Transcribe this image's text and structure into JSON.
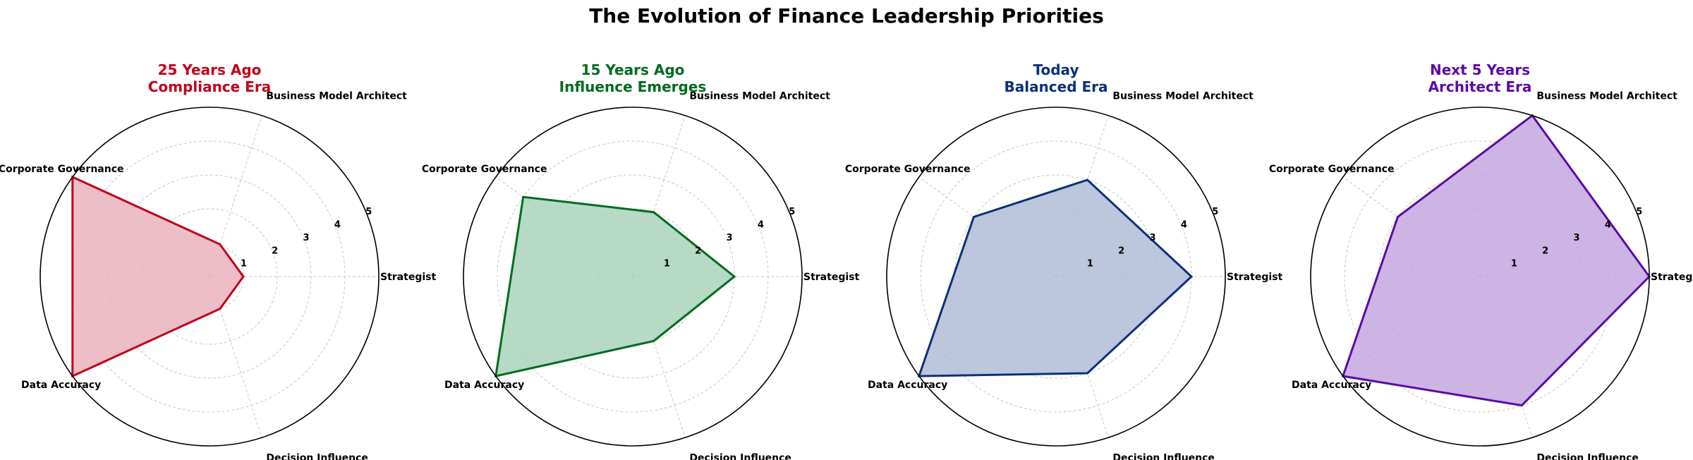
{
  "figure": {
    "title": "The Evolution of Finance Leadership Priorities"
  },
  "chart_data": [
    {
      "type": "radar",
      "title_line1": "25 Years Ago",
      "title_line2": "Compliance Era",
      "color": "#c0001a",
      "fill": "#eab3bd",
      "categories": [
        "Strategist",
        "Business Model Architect",
        "Corporate Governance",
        "Data Accuracy",
        "Decision Influence"
      ],
      "values": [
        1,
        1,
        5,
        5,
        1
      ],
      "rlim": [
        0,
        5
      ],
      "rticks": [
        1,
        2,
        3,
        4,
        5
      ],
      "grid": true
    },
    {
      "type": "radar",
      "title_line1": "15 Years Ago",
      "title_line2": "Influence Emerges",
      "color": "#006b1f",
      "fill": "#a9d4bb",
      "categories": [
        "Strategist",
        "Business Model Architect",
        "Corporate Governance",
        "Data Accuracy",
        "Decision Influence"
      ],
      "values": [
        3,
        2,
        4,
        5,
        2
      ],
      "rlim": [
        0,
        5
      ],
      "rticks": [
        1,
        2,
        3,
        4,
        5
      ],
      "grid": true
    },
    {
      "type": "radar",
      "title_line1": "Today",
      "title_line2": "Balanced Era",
      "color": "#0d2f7a",
      "fill": "#b0bcd6",
      "categories": [
        "Strategist",
        "Business Model Architect",
        "Corporate Governance",
        "Data Accuracy",
        "Decision Influence"
      ],
      "values": [
        4,
        3,
        3,
        5,
        3
      ],
      "rlim": [
        0,
        5
      ],
      "rticks": [
        1,
        2,
        3,
        4,
        5
      ],
      "grid": true
    },
    {
      "type": "radar",
      "title_line1": "Next 5 Years",
      "title_line2": "Architect Era",
      "color": "#5a0aa8",
      "fill": "#c6a6e0",
      "categories": [
        "Strategist",
        "Business Model Architect",
        "Corporate Governance",
        "Data Accuracy",
        "Decision Influence"
      ],
      "values": [
        5,
        5,
        3,
        5,
        4
      ],
      "rlim": [
        0,
        5
      ],
      "rticks": [
        1,
        2,
        3,
        4,
        5
      ],
      "grid": true
    }
  ]
}
